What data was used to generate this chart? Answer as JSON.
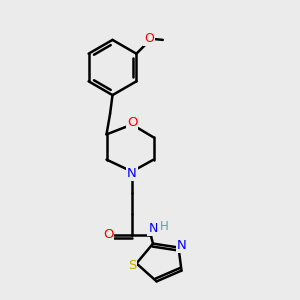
{
  "background_color": "#ebebeb",
  "bond_color": "#000000",
  "atom_colors": {
    "O": "#ff0000",
    "N": "#0000ff",
    "S": "#ccaa00",
    "NH_color": "#5f9ea0",
    "C": "#000000"
  },
  "figsize": [
    3.0,
    3.0
  ],
  "dpi": 100
}
